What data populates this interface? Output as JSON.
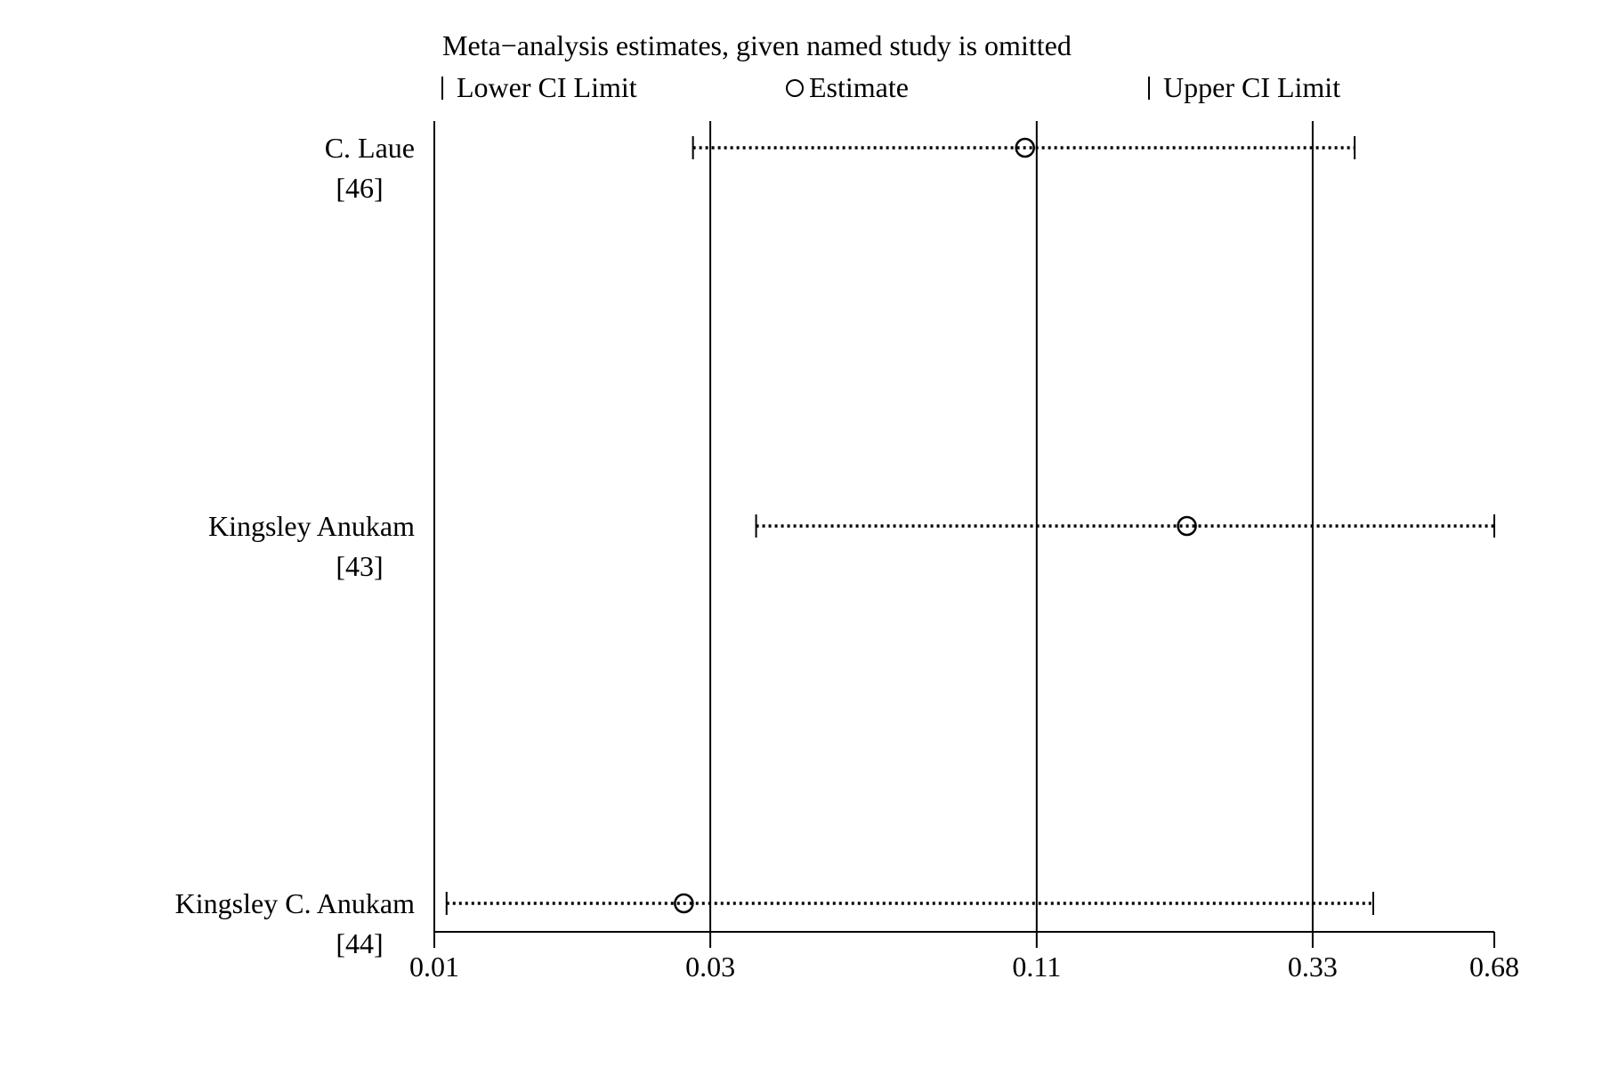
{
  "chart_data": {
    "type": "forest",
    "title": "Meta−analysis estimates, given named study is omitted",
    "legend": {
      "lower": "Lower CI Limit",
      "estimate": "Estimate",
      "upper": "Upper CI Limit"
    },
    "x_ticks": [
      {
        "value": 0.01,
        "label": "0.01"
      },
      {
        "value": 0.03,
        "label": "0.03"
      },
      {
        "value": 0.11,
        "label": "0.11"
      },
      {
        "value": 0.33,
        "label": "0.33"
      },
      {
        "value": 0.68,
        "label": "0.68"
      }
    ],
    "x_scale": "log",
    "reference_lines": [
      0.01,
      0.03,
      0.11,
      0.33
    ],
    "studies": [
      {
        "name": "C. Laue",
        "ref": "[46]",
        "lower": 0.028,
        "estimate": 0.105,
        "upper": 0.39
      },
      {
        "name": "Kingsley Anukam",
        "ref": "[43]",
        "lower": 0.036,
        "estimate": 0.2,
        "upper": 0.68
      },
      {
        "name": "Kingsley C. Anukam",
        "ref": "[44]",
        "lower": 0.0105,
        "estimate": 0.027,
        "upper": 0.42
      }
    ]
  }
}
